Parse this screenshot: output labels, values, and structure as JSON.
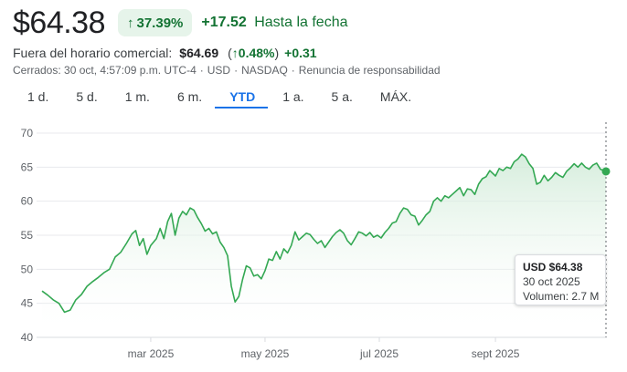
{
  "header": {
    "price": "$64.38",
    "change_pct": "37.39%",
    "change_abs": "+17.52",
    "change_period": "Hasta la fecha"
  },
  "after_hours": {
    "label": "Fuera del horario comercial:",
    "price": "$64.69",
    "pct_open": "(",
    "pct": "0.48%",
    "pct_close": ")",
    "abs": "+0.31"
  },
  "meta": {
    "closed": "Cerrados: 30 oct, 4:57:09 p.m. UTC-4",
    "currency": "USD",
    "exchange": "NASDAQ",
    "disclaimer": "Renuncia de responsabilidad"
  },
  "range_tabs": [
    {
      "label": "1 d.",
      "active": false
    },
    {
      "label": "5 d.",
      "active": false
    },
    {
      "label": "1 m.",
      "active": false
    },
    {
      "label": "6 m.",
      "active": false
    },
    {
      "label": "YTD",
      "active": true
    },
    {
      "label": "1 a.",
      "active": false
    },
    {
      "label": "5 a.",
      "active": false
    },
    {
      "label": "MÁX.",
      "active": false
    }
  ],
  "colors": {
    "line": "#34a853",
    "fill_top": "#ceead6",
    "positive": "#137333",
    "active_tab": "#1a73e8",
    "grid": "#e8eaed"
  },
  "tooltip": {
    "price": "USD $64.38",
    "date": "30 oct 2025",
    "volume": "Volumen: 2.7 M"
  },
  "chart_data": {
    "type": "area",
    "title": "",
    "xlabel": "",
    "ylabel": "",
    "ylim": [
      40,
      70
    ],
    "yticks": [
      40,
      45,
      50,
      55,
      60,
      65,
      70
    ],
    "grid": true,
    "x_tick_labels": [
      {
        "label": "mar 2025",
        "date": "2025-03-01"
      },
      {
        "label": "may 2025",
        "date": "2025-05-01"
      },
      {
        "label": "jul 2025",
        "date": "2025-07-01"
      },
      {
        "label": "sept 2025",
        "date": "2025-09-01"
      }
    ],
    "x_range": [
      "2025-01-01",
      "2025-10-30"
    ],
    "points": [
      [
        "2025-01-02",
        46.8
      ],
      [
        "2025-01-05",
        46.2
      ],
      [
        "2025-01-08",
        45.5
      ],
      [
        "2025-01-11",
        45.0
      ],
      [
        "2025-01-14",
        43.7
      ],
      [
        "2025-01-17",
        44.0
      ],
      [
        "2025-01-20",
        45.5
      ],
      [
        "2025-01-23",
        46.3
      ],
      [
        "2025-01-26",
        47.5
      ],
      [
        "2025-01-29",
        48.2
      ],
      [
        "2025-02-01",
        48.8
      ],
      [
        "2025-02-04",
        49.5
      ],
      [
        "2025-02-07",
        50.0
      ],
      [
        "2025-02-10",
        51.8
      ],
      [
        "2025-02-13",
        52.5
      ],
      [
        "2025-02-16",
        53.8
      ],
      [
        "2025-02-19",
        55.2
      ],
      [
        "2025-02-21",
        55.7
      ],
      [
        "2025-02-23",
        53.5
      ],
      [
        "2025-02-25",
        54.5
      ],
      [
        "2025-02-27",
        52.2
      ],
      [
        "2025-03-01",
        53.5
      ],
      [
        "2025-03-04",
        54.5
      ],
      [
        "2025-03-06",
        56.0
      ],
      [
        "2025-03-08",
        54.5
      ],
      [
        "2025-03-10",
        57.0
      ],
      [
        "2025-03-12",
        58.2
      ],
      [
        "2025-03-14",
        55.0
      ],
      [
        "2025-03-16",
        57.5
      ],
      [
        "2025-03-18",
        58.5
      ],
      [
        "2025-03-20",
        58.0
      ],
      [
        "2025-03-22",
        59.0
      ],
      [
        "2025-03-24",
        58.7
      ],
      [
        "2025-03-26",
        57.6
      ],
      [
        "2025-03-28",
        56.7
      ],
      [
        "2025-03-30",
        55.6
      ],
      [
        "2025-04-01",
        56.0
      ],
      [
        "2025-04-03",
        55.2
      ],
      [
        "2025-04-05",
        55.5
      ],
      [
        "2025-04-07",
        54.0
      ],
      [
        "2025-04-09",
        53.2
      ],
      [
        "2025-04-11",
        52.0
      ],
      [
        "2025-04-13",
        47.5
      ],
      [
        "2025-04-15",
        45.2
      ],
      [
        "2025-04-17",
        46.0
      ],
      [
        "2025-04-19",
        48.5
      ],
      [
        "2025-04-21",
        50.5
      ],
      [
        "2025-04-23",
        50.2
      ],
      [
        "2025-04-25",
        49.0
      ],
      [
        "2025-04-27",
        49.2
      ],
      [
        "2025-04-29",
        48.6
      ],
      [
        "2025-05-01",
        49.8
      ],
      [
        "2025-05-03",
        51.5
      ],
      [
        "2025-05-05",
        51.3
      ],
      [
        "2025-05-07",
        52.6
      ],
      [
        "2025-05-09",
        51.5
      ],
      [
        "2025-05-11",
        53.0
      ],
      [
        "2025-05-13",
        52.4
      ],
      [
        "2025-05-15",
        53.5
      ],
      [
        "2025-05-17",
        55.5
      ],
      [
        "2025-05-19",
        54.3
      ],
      [
        "2025-05-21",
        54.8
      ],
      [
        "2025-05-23",
        55.3
      ],
      [
        "2025-05-25",
        55.1
      ],
      [
        "2025-05-27",
        54.4
      ],
      [
        "2025-05-29",
        53.8
      ],
      [
        "2025-05-31",
        54.2
      ],
      [
        "2025-06-02",
        53.2
      ],
      [
        "2025-06-04",
        54.0
      ],
      [
        "2025-06-06",
        54.8
      ],
      [
        "2025-06-08",
        55.4
      ],
      [
        "2025-06-10",
        55.8
      ],
      [
        "2025-06-12",
        55.3
      ],
      [
        "2025-06-14",
        54.2
      ],
      [
        "2025-06-16",
        53.6
      ],
      [
        "2025-06-18",
        54.5
      ],
      [
        "2025-06-20",
        55.5
      ],
      [
        "2025-06-22",
        55.3
      ],
      [
        "2025-06-24",
        54.9
      ],
      [
        "2025-06-26",
        55.4
      ],
      [
        "2025-06-28",
        54.7
      ],
      [
        "2025-06-30",
        55.0
      ],
      [
        "2025-07-02",
        54.6
      ],
      [
        "2025-07-04",
        55.4
      ],
      [
        "2025-07-06",
        56.0
      ],
      [
        "2025-07-08",
        56.8
      ],
      [
        "2025-07-10",
        57.0
      ],
      [
        "2025-07-12",
        58.2
      ],
      [
        "2025-07-14",
        59.0
      ],
      [
        "2025-07-16",
        58.8
      ],
      [
        "2025-07-18",
        58.0
      ],
      [
        "2025-07-20",
        57.8
      ],
      [
        "2025-07-22",
        56.5
      ],
      [
        "2025-07-24",
        57.2
      ],
      [
        "2025-07-26",
        58.0
      ],
      [
        "2025-07-28",
        58.5
      ],
      [
        "2025-07-30",
        60.0
      ],
      [
        "2025-08-01",
        60.5
      ],
      [
        "2025-08-03",
        60.0
      ],
      [
        "2025-08-05",
        60.8
      ],
      [
        "2025-08-07",
        60.5
      ],
      [
        "2025-08-09",
        61.0
      ],
      [
        "2025-08-11",
        61.5
      ],
      [
        "2025-08-13",
        62.0
      ],
      [
        "2025-08-15",
        60.8
      ],
      [
        "2025-08-17",
        61.8
      ],
      [
        "2025-08-19",
        61.7
      ],
      [
        "2025-08-21",
        61.0
      ],
      [
        "2025-08-23",
        62.5
      ],
      [
        "2025-08-25",
        63.3
      ],
      [
        "2025-08-27",
        63.6
      ],
      [
        "2025-08-29",
        64.5
      ],
      [
        "2025-09-01",
        63.7
      ],
      [
        "2025-09-03",
        64.8
      ],
      [
        "2025-09-05",
        64.5
      ],
      [
        "2025-09-07",
        65.0
      ],
      [
        "2025-09-09",
        64.8
      ],
      [
        "2025-09-11",
        65.8
      ],
      [
        "2025-09-13",
        66.2
      ],
      [
        "2025-09-15",
        66.9
      ],
      [
        "2025-09-17",
        66.5
      ],
      [
        "2025-09-19",
        65.5
      ],
      [
        "2025-09-21",
        64.8
      ],
      [
        "2025-09-23",
        62.5
      ],
      [
        "2025-09-25",
        62.8
      ],
      [
        "2025-09-27",
        63.8
      ],
      [
        "2025-09-29",
        63.0
      ],
      [
        "2025-10-01",
        63.5
      ],
      [
        "2025-10-03",
        64.2
      ],
      [
        "2025-10-05",
        63.8
      ],
      [
        "2025-10-07",
        63.5
      ],
      [
        "2025-10-09",
        64.4
      ],
      [
        "2025-10-11",
        64.9
      ],
      [
        "2025-10-13",
        65.5
      ],
      [
        "2025-10-15",
        65.0
      ],
      [
        "2025-10-17",
        65.6
      ],
      [
        "2025-10-19",
        65.0
      ],
      [
        "2025-10-21",
        64.7
      ],
      [
        "2025-10-23",
        65.3
      ],
      [
        "2025-10-25",
        65.6
      ],
      [
        "2025-10-27",
        64.7
      ],
      [
        "2025-10-30",
        64.38
      ]
    ],
    "last_point": [
      "2025-10-30",
      64.38
    ]
  }
}
